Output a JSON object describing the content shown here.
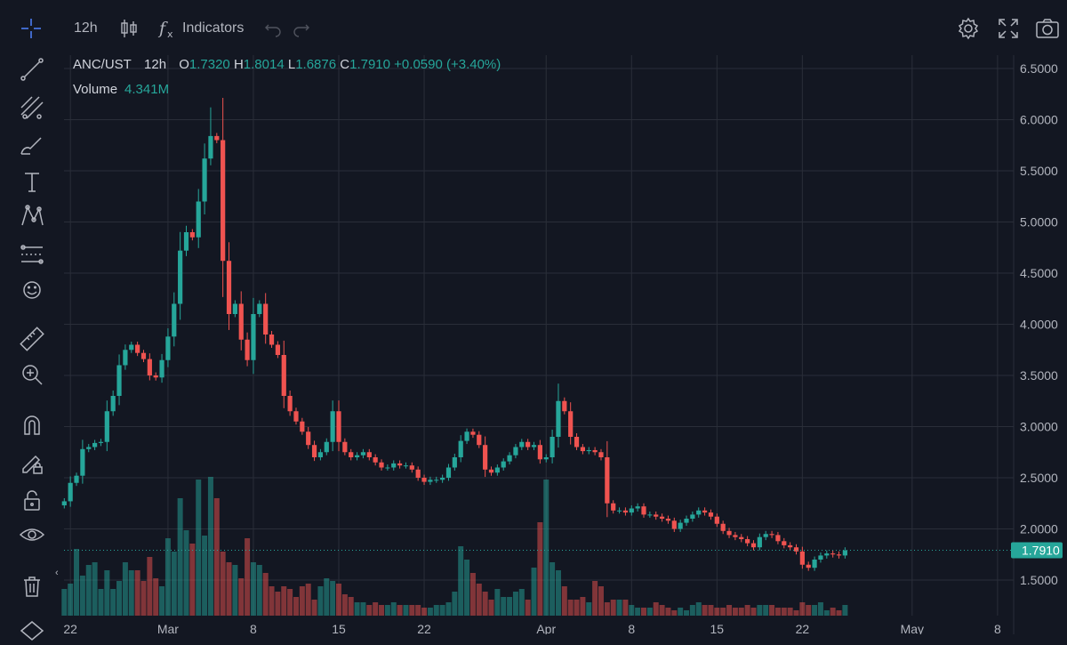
{
  "toolbar": {
    "interval": "12h",
    "indicators_label": "Indicators",
    "icons": [
      "crosshair-icon",
      "candles-icon",
      "fx-icon",
      "undo-icon",
      "redo-icon",
      "settings-icon",
      "fullscreen-icon",
      "camera-icon"
    ]
  },
  "sidebar": {
    "tools": [
      "crosshair-icon",
      "trend-line-icon",
      "fib-icon",
      "brush-icon",
      "text-icon",
      "pattern-icon",
      "prediction-icon",
      "emoji-icon",
      "ruler-icon",
      "zoom-in-icon",
      "magnet-icon",
      "lock-draw-icon",
      "lock-icon",
      "eye-icon",
      "trash-icon"
    ]
  },
  "legend": {
    "symbol": "ANC/UST",
    "interval": "12h",
    "open_label": "O",
    "open": "1.7320",
    "high_label": "H",
    "high": "1.8014",
    "low_label": "L",
    "low": "1.6876",
    "close_label": "C",
    "close": "1.7910",
    "change": "+0.0590 (+3.40%)",
    "volume_label": "Volume",
    "volume": "4.341M"
  },
  "chart_data": {
    "type": "candlestick",
    "y_ticks": [
      "6.5000",
      "6.0000",
      "5.5000",
      "5.0000",
      "4.5000",
      "4.0000",
      "3.5000",
      "3.0000",
      "2.5000",
      "2.0000",
      "1.5000"
    ],
    "ylim": [
      1.15,
      6.65
    ],
    "x_ticks": [
      {
        "index": 1,
        "label": "22"
      },
      {
        "index": 17,
        "label": "Mar"
      },
      {
        "index": 31,
        "label": "8"
      },
      {
        "index": 45,
        "label": "15"
      },
      {
        "index": 59,
        "label": "22"
      },
      {
        "index": 79,
        "label": "Apr"
      },
      {
        "index": 93,
        "label": "8"
      },
      {
        "index": 107,
        "label": "15"
      },
      {
        "index": 121,
        "label": "22"
      },
      {
        "index": 139,
        "label": "May"
      },
      {
        "index": 153,
        "label": "8"
      }
    ],
    "last_price": "1.7910",
    "colors": {
      "up": "#26a69a",
      "down": "#ef5350",
      "grid": "#2a2e39",
      "background": "#131722"
    },
    "close": [
      2.27,
      2.45,
      2.52,
      2.78,
      2.8,
      2.84,
      2.85,
      3.15,
      3.3,
      3.6,
      3.75,
      3.8,
      3.72,
      3.66,
      3.5,
      3.48,
      3.65,
      3.88,
      4.2,
      4.72,
      4.9,
      4.85,
      5.2,
      5.62,
      5.84,
      5.8,
      4.62,
      4.1,
      4.2,
      3.85,
      3.65,
      4.1,
      4.2,
      3.9,
      3.8,
      3.7,
      3.3,
      3.15,
      3.05,
      2.95,
      2.82,
      2.7,
      2.75,
      2.85,
      3.15,
      2.85,
      2.75,
      2.7,
      2.72,
      2.75,
      2.7,
      2.65,
      2.6,
      2.6,
      2.64,
      2.62,
      2.62,
      2.58,
      2.5,
      2.46,
      2.48,
      2.48,
      2.5,
      2.6,
      2.7,
      2.86,
      2.95,
      2.92,
      2.82,
      2.58,
      2.55,
      2.6,
      2.66,
      2.72,
      2.8,
      2.85,
      2.8,
      2.82,
      2.68,
      2.7,
      2.9,
      3.25,
      3.15,
      2.9,
      2.8,
      2.76,
      2.77,
      2.75,
      2.7,
      2.25,
      2.18,
      2.18,
      2.16,
      2.2,
      2.22,
      2.14,
      2.14,
      2.12,
      2.1,
      2.08,
      2.0,
      2.06,
      2.1,
      2.14,
      2.18,
      2.16,
      2.12,
      2.05,
      1.98,
      1.94,
      1.92,
      1.9,
      1.86,
      1.82,
      1.92,
      1.95,
      1.94,
      1.88,
      1.84,
      1.82,
      1.78,
      1.65,
      1.62,
      1.7,
      1.74,
      1.76,
      1.75,
      1.74,
      1.79
    ],
    "volume": [
      0.1,
      0.12,
      0.25,
      0.15,
      0.19,
      0.2,
      0.1,
      0.17,
      0.1,
      0.13,
      0.2,
      0.17,
      0.17,
      0.13,
      0.22,
      0.14,
      0.11,
      0.29,
      0.24,
      0.44,
      0.32,
      0.27,
      0.51,
      0.3,
      0.52,
      0.44,
      0.24,
      0.2,
      0.19,
      0.14,
      0.29,
      0.2,
      0.19,
      0.16,
      0.11,
      0.09,
      0.11,
      0.1,
      0.07,
      0.11,
      0.12,
      0.06,
      0.11,
      0.14,
      0.13,
      0.12,
      0.08,
      0.07,
      0.05,
      0.05,
      0.04,
      0.05,
      0.04,
      0.04,
      0.05,
      0.04,
      0.04,
      0.04,
      0.04,
      0.03,
      0.03,
      0.04,
      0.04,
      0.05,
      0.09,
      0.26,
      0.21,
      0.16,
      0.12,
      0.09,
      0.06,
      0.1,
      0.07,
      0.07,
      0.09,
      0.1,
      0.06,
      0.18,
      0.35,
      0.51,
      0.2,
      0.17,
      0.11,
      0.06,
      0.06,
      0.07,
      0.05,
      0.13,
      0.11,
      0.05,
      0.06,
      0.06,
      0.06,
      0.04,
      0.03,
      0.03,
      0.03,
      0.05,
      0.04,
      0.03,
      0.02,
      0.03,
      0.02,
      0.04,
      0.05,
      0.04,
      0.04,
      0.03,
      0.03,
      0.04,
      0.03,
      0.03,
      0.04,
      0.03,
      0.04,
      0.04,
      0.04,
      0.03,
      0.03,
      0.03,
      0.02,
      0.05,
      0.04,
      0.04,
      0.05,
      0.02,
      0.03,
      0.02,
      0.04
    ]
  }
}
